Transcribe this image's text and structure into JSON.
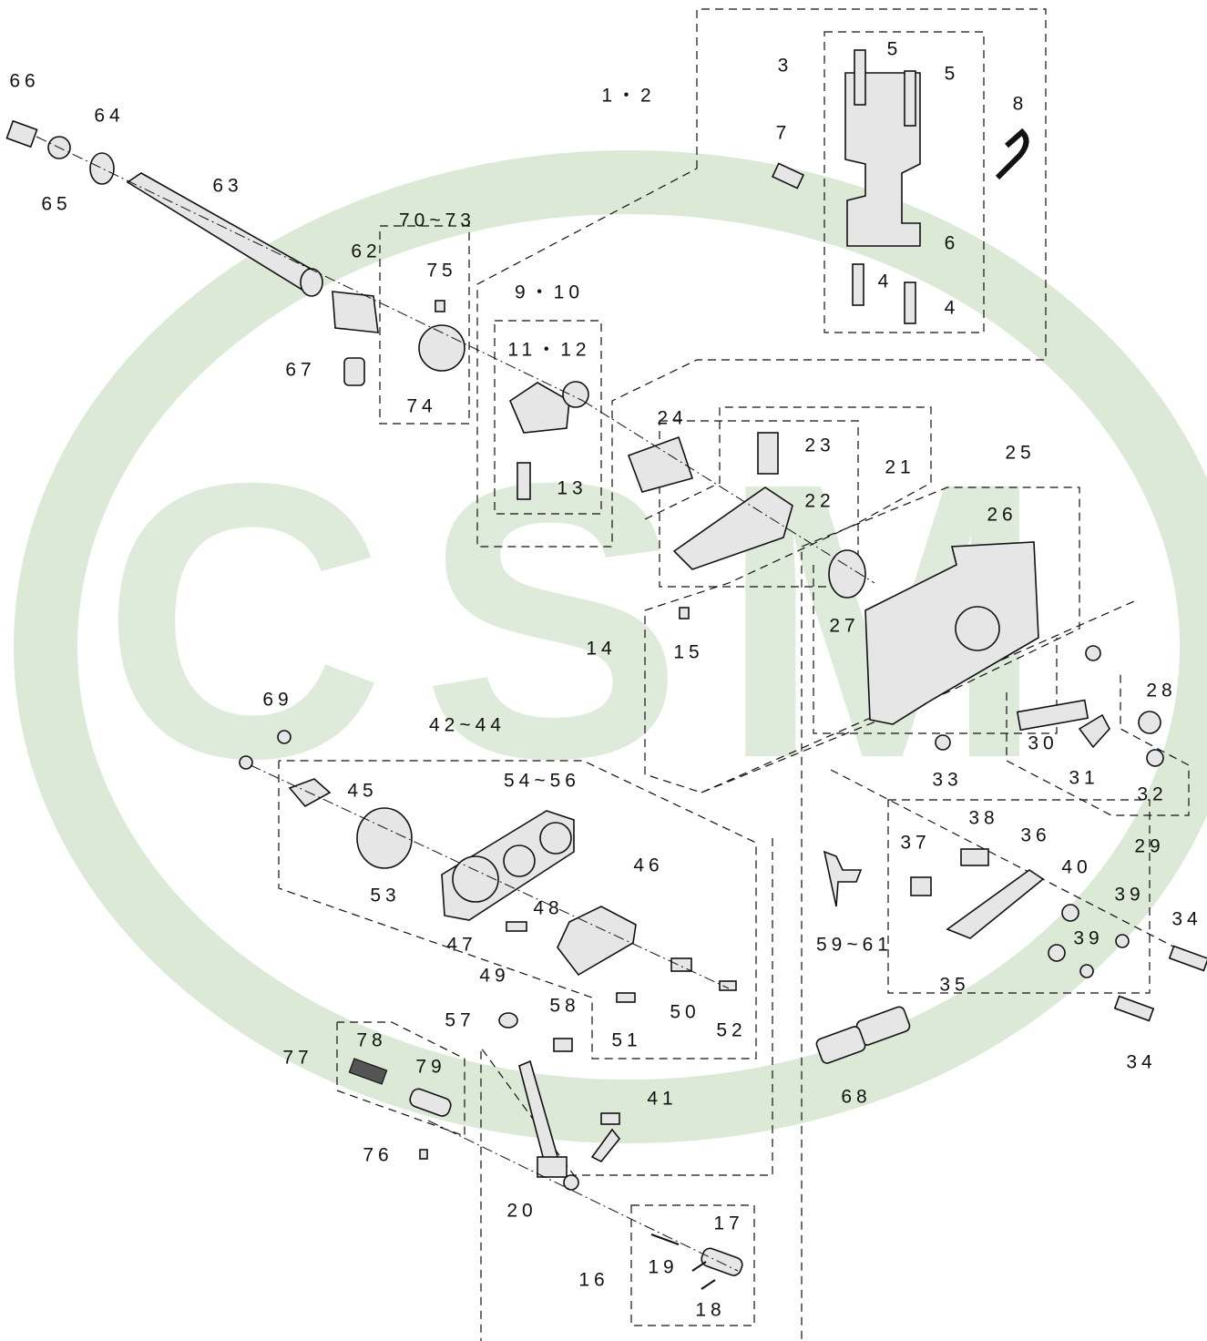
{
  "watermark": "CSM",
  "labels": [
    "66",
    "64",
    "65",
    "63",
    "70~73",
    "62",
    "75",
    "67",
    "74",
    "9・10",
    "11・12",
    "13",
    "1・2",
    "3",
    "5",
    "5",
    "7",
    "8",
    "6",
    "4",
    "4",
    "24",
    "23",
    "21",
    "22",
    "25",
    "26",
    "27",
    "14",
    "15",
    "28",
    "30",
    "33",
    "31",
    "32",
    "29",
    "69",
    "42~44",
    "45",
    "54~56",
    "53",
    "46",
    "48",
    "47",
    "49",
    "38",
    "37",
    "36",
    "40",
    "39",
    "34",
    "39",
    "59~61",
    "35",
    "50",
    "52",
    "51",
    "57",
    "58",
    "34",
    "68",
    "77",
    "78",
    "79",
    "41",
    "76",
    "20",
    "17",
    "19",
    "16",
    "18"
  ]
}
